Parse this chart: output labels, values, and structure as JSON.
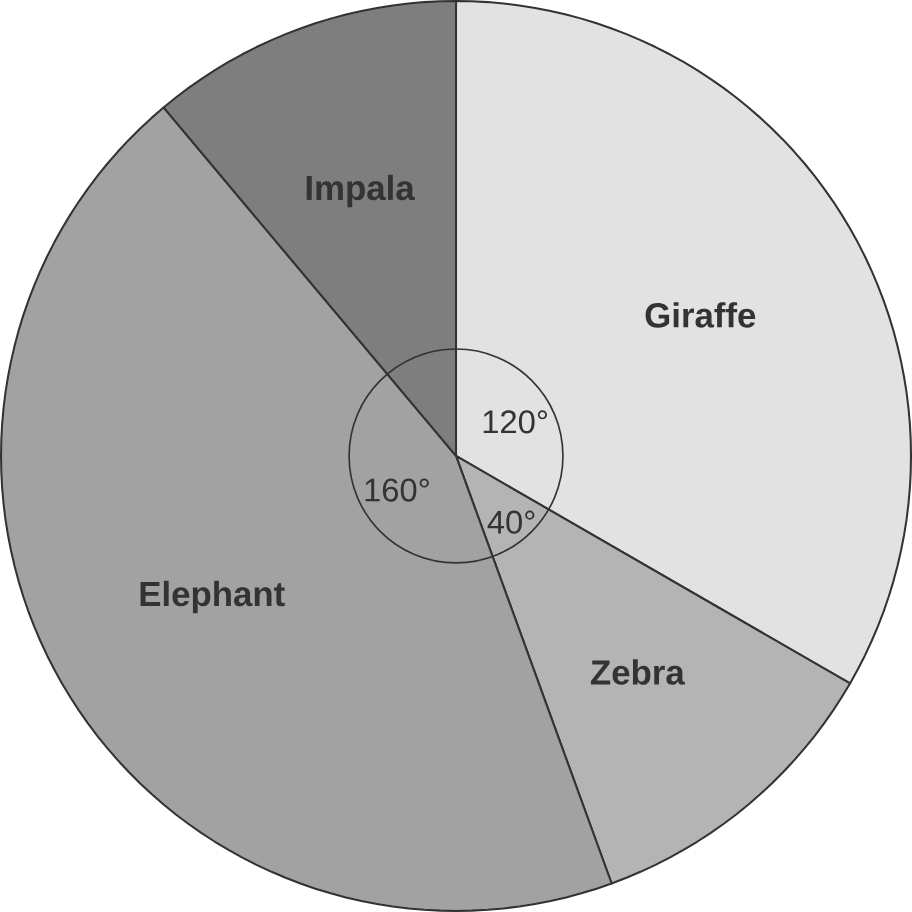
{
  "chart_data": {
    "type": "pie",
    "categories": [
      "Giraffe",
      "Zebra",
      "Elephant",
      "Impala"
    ],
    "values": [
      120,
      40,
      160,
      40
    ],
    "value_labels": [
      "120°",
      "40°",
      "160°",
      null
    ],
    "colors": [
      "#e2e2e2",
      "#b4b4b4",
      "#a2a2a2",
      "#7e7e7e"
    ]
  }
}
